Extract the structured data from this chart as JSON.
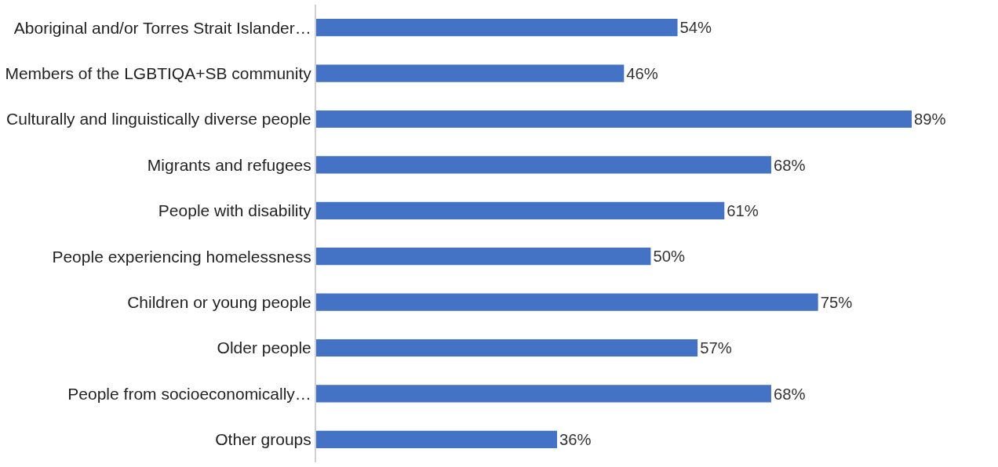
{
  "chart_data": {
    "type": "bar",
    "orientation": "horizontal",
    "categories": [
      "Aboriginal and/or Torres Strait Islander…",
      "Members of the LGBTIQA+SB community",
      "Culturally and linguistically diverse people",
      "Migrants and refugees",
      "People with disability",
      "People experiencing homelessness",
      "Children or young people",
      "Older people",
      "People from socioeconomically…",
      "Other groups"
    ],
    "values": [
      54,
      46,
      89,
      68,
      61,
      50,
      75,
      57,
      68,
      36
    ],
    "value_labels": [
      "54%",
      "46%",
      "89%",
      "68%",
      "61%",
      "50%",
      "75%",
      "57%",
      "68%",
      "36%"
    ],
    "color": "#4472c4",
    "tick_labels": "y"
  }
}
